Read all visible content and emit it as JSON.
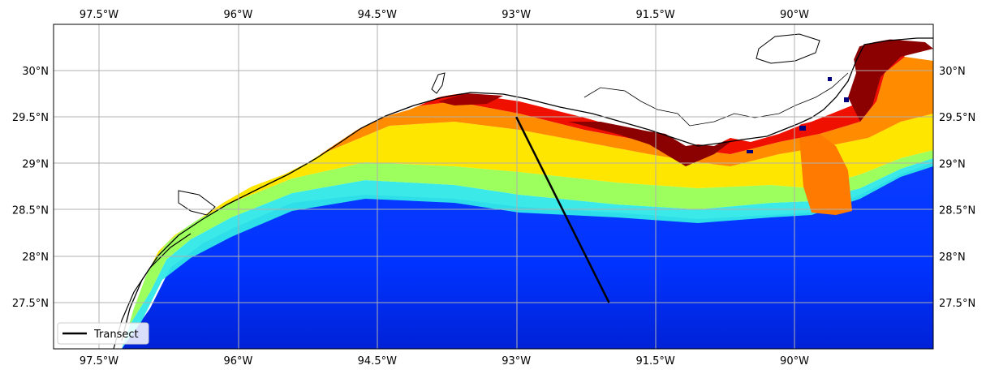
{
  "map": {
    "projection": "PlateCarree",
    "lon_range": [
      -98.0,
      -88.5
    ],
    "lat_range": [
      27.0,
      30.5
    ],
    "gridlines": true,
    "coastline": true,
    "field": "ocean color (jet colormap): high values (dark red) near coast, low values (blue) offshore",
    "colormap": [
      "#00007f",
      "#0000ff",
      "#007fff",
      "#00ffff",
      "#7fff7f",
      "#ffff00",
      "#ff7f00",
      "#ff0000",
      "#7f0000"
    ]
  },
  "x_ticks": [
    {
      "lon": -97.5,
      "label": "97.5°W"
    },
    {
      "lon": -96.0,
      "label": "96°W"
    },
    {
      "lon": -94.5,
      "label": "94.5°W"
    },
    {
      "lon": -93.0,
      "label": "93°W"
    },
    {
      "lon": -91.5,
      "label": "91.5°W"
    },
    {
      "lon": -90.0,
      "label": "90°W"
    }
  ],
  "y_ticks": [
    {
      "lat": 30.0,
      "label": "30°N"
    },
    {
      "lat": 29.5,
      "label": "29.5°N"
    },
    {
      "lat": 29.0,
      "label": "29°N"
    },
    {
      "lat": 28.5,
      "label": "28.5°N"
    },
    {
      "lat": 28.0,
      "label": "28°N"
    },
    {
      "lat": 27.5,
      "label": "27.5°N"
    }
  ],
  "transect": {
    "label": "Transect",
    "color": "#000000",
    "start": {
      "lon": -93.0,
      "lat": 29.5
    },
    "end": {
      "lon": -92.0,
      "lat": 27.5
    }
  },
  "legend": {
    "placement": "lower-left"
  }
}
